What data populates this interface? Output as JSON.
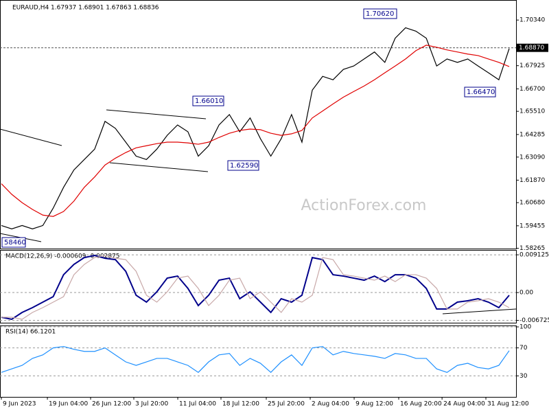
{
  "chart_data": [
    {
      "type": "line",
      "title": "EURAUD,H4  1.67937 1.68901 1.67863 1.68836",
      "ylim": [
        1.5825,
        1.714
      ],
      "yticks": [
        {
          "value": 1.7034,
          "label": "1.70340"
        },
        {
          "value": 1.67925,
          "label": "1.67925"
        },
        {
          "value": 1.667,
          "label": "1.66700"
        },
        {
          "value": 1.6551,
          "label": "1.65510"
        },
        {
          "value": 1.64285,
          "label": "1.64285"
        },
        {
          "value": 1.6309,
          "label": "1.63090"
        },
        {
          "value": 1.6187,
          "label": "1.61870"
        },
        {
          "value": 1.6068,
          "label": "1.60680"
        },
        {
          "value": 1.59455,
          "label": "1.59455"
        },
        {
          "value": 1.58265,
          "label": "1.58265"
        }
      ],
      "xlim": [
        0,
        49
      ],
      "grid": false,
      "last_price": {
        "value": 1.6887,
        "label": "1.68870"
      },
      "annotations": [
        "1.70620",
        "1.66010",
        "1.62590",
        "1.66470",
        "58460"
      ],
      "watermark": "ActionForex.com",
      "series": [
        {
          "color": "#000000",
          "values": [
            1.5947,
            1.5929,
            1.5947,
            1.5929,
            1.5947,
            1.6039,
            1.6149,
            1.6241,
            1.6296,
            1.6351,
            1.6498,
            1.6461,
            1.6388,
            1.6314,
            1.6296,
            1.6351,
            1.6424,
            1.6479,
            1.6443,
            1.6314,
            1.6369,
            1.6479,
            1.6534,
            1.6443,
            1.6516,
            1.6406,
            1.6314,
            1.6406,
            1.6534,
            1.6388,
            1.6663,
            1.6736,
            1.6718,
            1.6773,
            1.6791,
            1.6828,
            1.6865,
            1.681,
            1.6938,
            1.6993,
            1.6975,
            1.6938,
            1.6791,
            1.6828,
            1.681,
            1.6828,
            1.6791,
            1.6755,
            1.6718,
            1.6883
          ]
        },
        {
          "color": "#e00000",
          "values": [
            1.6168,
            1.6112,
            1.6068,
            1.6032,
            1.6002,
            1.5995,
            1.6021,
            1.6076,
            1.6149,
            1.6204,
            1.6267,
            1.6303,
            1.6333,
            1.6358,
            1.6369,
            1.638,
            1.6388,
            1.6388,
            1.6384,
            1.6377,
            1.6388,
            1.6413,
            1.6435,
            1.645,
            1.6457,
            1.6454,
            1.6435,
            1.6424,
            1.6432,
            1.645,
            1.6516,
            1.6553,
            1.659,
            1.6626,
            1.6656,
            1.6685,
            1.6718,
            1.6755,
            1.6791,
            1.6828,
            1.6872,
            1.6901,
            1.689,
            1.6876,
            1.6865,
            1.6854,
            1.6846,
            1.6828,
            1.681,
            1.6788
          ]
        }
      ]
    },
    {
      "type": "line",
      "title": "MACD(12,26,9) -0.000609 -0.002875",
      "ylim": [
        -0.0073,
        0.0103
      ],
      "yticks": [
        0.009125,
        {
          "value": 0,
          "label": "0.00"
        },
        -0.006725
      ],
      "xlim": [
        0,
        49
      ],
      "grid": true,
      "series": [
        {
          "color": "#00008b",
          "values": [
            -0.00597,
            -0.00647,
            -0.00481,
            -0.00365,
            -0.00232,
            -0.001,
            0.00431,
            0.0068,
            0.00846,
            0.00896,
            0.00829,
            0.00796,
            0.00514,
            -0.00066,
            -0.00232,
            0.00017,
            0.00348,
            0.00398,
            0.001,
            -0.00315,
            -0.00066,
            0.00299,
            0.00348,
            -0.00149,
            0.00017,
            -0.00232,
            -0.00481,
            -0.00149,
            -0.00232,
            -0.00066,
            0.00846,
            0.00796,
            0.00431,
            0.00398,
            0.00348,
            0.00299,
            0.00398,
            0.00265,
            0.00431,
            0.00431,
            0.00348,
            0.001,
            -0.00398,
            -0.00398,
            -0.00232,
            -0.00199,
            -0.00149,
            -0.00232,
            -0.00365,
            -0.00066
          ]
        },
        {
          "color": "#c8a8a8",
          "values": [
            -0.00597,
            -0.00597,
            -0.00647,
            -0.00481,
            -0.00365,
            -0.00232,
            -0.001,
            0.00431,
            0.0068,
            0.00846,
            0.00896,
            0.00829,
            0.00796,
            0.00514,
            -0.00066,
            -0.00232,
            0.00017,
            0.00348,
            0.00398,
            0.001,
            -0.00315,
            -0.00066,
            0.00299,
            0.00348,
            -0.00149,
            0.00017,
            -0.00232,
            -0.00481,
            -0.00149,
            -0.00232,
            -0.00066,
            0.00846,
            0.00796,
            0.00431,
            0.00398,
            0.00348,
            0.00299,
            0.00398,
            0.00265,
            0.00431,
            0.00431,
            0.00348,
            0.001,
            -0.00398,
            -0.00398,
            -0.00232,
            -0.00199,
            -0.00149,
            -0.00232,
            -0.00365
          ]
        }
      ]
    },
    {
      "type": "line",
      "title": "RSI(14) 66.1201",
      "ylim": [
        0,
        102
      ],
      "yticks": [
        100,
        70,
        30
      ],
      "xlim": [
        0,
        49
      ],
      "grid": true,
      "xticks": [
        {
          "value": 0,
          "label": "9 Jun 2023"
        },
        {
          "value": 4.44,
          "label": "19 Jun 04:00"
        },
        {
          "value": 8.61,
          "label": "26 Jun 12:00"
        },
        {
          "value": 12.78,
          "label": "3 Jul 20:00"
        },
        {
          "value": 17.02,
          "label": "11 Jul 04:00"
        },
        {
          "value": 21.19,
          "label": "18 Jul 12:00"
        },
        {
          "value": 25.56,
          "label": "25 Jul 20:00"
        },
        {
          "value": 29.8,
          "label": "2 Aug 04:00"
        },
        {
          "value": 34.04,
          "label": "9 Aug 12:00"
        },
        {
          "value": 38.34,
          "label": "16 Aug 20:00"
        },
        {
          "value": 42.52,
          "label": "24 Aug 04:00"
        },
        {
          "value": 46.75,
          "label": "31 Aug 12:00"
        }
      ],
      "series": [
        {
          "color": "#1e90ff",
          "values": [
            35,
            40,
            45,
            55,
            60,
            70,
            72,
            68,
            65,
            65,
            70,
            60,
            50,
            45,
            50,
            55,
            55,
            50,
            45,
            35,
            50,
            60,
            62,
            45,
            55,
            48,
            35,
            50,
            60,
            45,
            70,
            72,
            60,
            65,
            62,
            60,
            58,
            55,
            62,
            60,
            55,
            55,
            40,
            35,
            45,
            48,
            42,
            40,
            45,
            66
          ]
        }
      ]
    }
  ]
}
